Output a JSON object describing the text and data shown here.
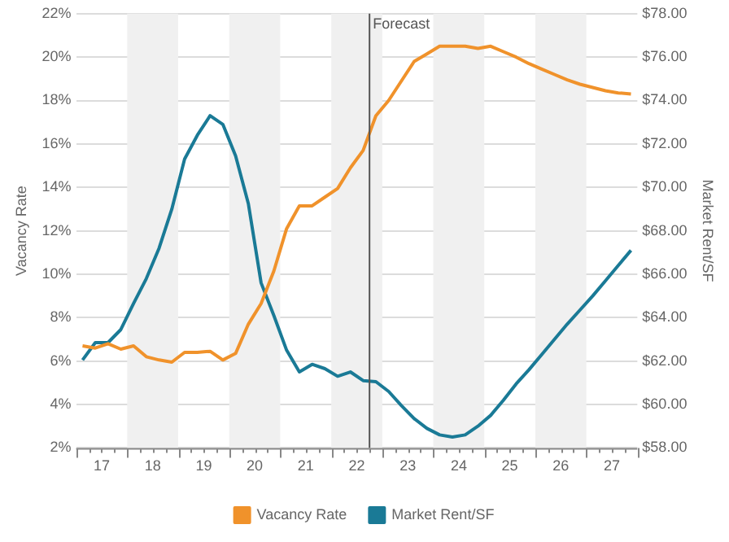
{
  "chart_data": {
    "type": "line",
    "ylabel": "Vacancy Rate",
    "y2label": "Market Rent/SF",
    "x": [
      16.625,
      16.875,
      17.125,
      17.375,
      17.625,
      17.875,
      18.125,
      18.375,
      18.625,
      18.875,
      19.125,
      19.375,
      19.625,
      19.875,
      20.125,
      20.375,
      20.625,
      20.875,
      21.125,
      21.375,
      21.625,
      21.875,
      22.125,
      22.375,
      22.625,
      22.875,
      23.125,
      23.375,
      23.625,
      23.875,
      24.125,
      24.375,
      24.625,
      24.875,
      25.125,
      25.375,
      25.625,
      25.875,
      26.125,
      26.375,
      26.625,
      26.875,
      27.125,
      27.375
    ],
    "series": [
      {
        "name": "Vacancy Rate",
        "color": "#f0922b",
        "values": [
          6.7,
          6.6,
          6.8,
          6.55,
          6.7,
          6.2,
          6.05,
          5.95,
          6.4,
          6.4,
          6.45,
          6.05,
          6.35,
          7.7,
          8.65,
          10.15,
          12.1,
          13.15,
          13.15,
          13.55,
          13.95,
          14.9,
          15.7,
          17.3,
          18.0,
          18.9,
          19.8,
          20.15,
          20.5,
          20.5,
          20.5,
          20.4,
          20.5,
          20.25,
          20.0,
          19.7,
          19.45,
          19.2,
          18.95,
          18.75,
          18.6,
          18.45,
          18.35,
          18.3
        ]
      },
      {
        "name": "Market Rent/SF",
        "color": "#1a7a96",
        "axis": "y2",
        "values": [
          62.05,
          62.85,
          62.85,
          63.45,
          64.65,
          65.8,
          67.2,
          69.0,
          71.3,
          72.4,
          73.3,
          72.9,
          71.45,
          69.25,
          65.6,
          64.1,
          62.5,
          61.5,
          61.85,
          61.65,
          61.3,
          61.5,
          61.1,
          61.05,
          60.6,
          59.95,
          59.35,
          58.9,
          58.6,
          58.5,
          58.6,
          59.0,
          59.5,
          60.2,
          60.95,
          61.6,
          62.3,
          63.0,
          63.7,
          64.35,
          65.0,
          65.7,
          66.4,
          67.1
        ]
      }
    ],
    "xlim": [
      16.5,
      27.5
    ],
    "xticks": [
      {
        "value": 16.5,
        "label": null
      },
      {
        "value": 16.75,
        "label": null
      },
      17,
      {
        "value": 17.25,
        "label": null
      },
      {
        "value": 17.5,
        "label": null
      },
      {
        "value": 17.75,
        "label": null
      },
      18,
      {
        "value": 18.25,
        "label": null
      },
      {
        "value": 18.5,
        "label": null
      },
      {
        "value": 18.75,
        "label": null
      },
      19,
      {
        "value": 19.25,
        "label": null
      },
      {
        "value": 19.5,
        "label": null
      },
      {
        "value": 19.75,
        "label": null
      },
      20,
      {
        "value": 20.25,
        "label": null
      },
      {
        "value": 20.5,
        "label": null
      },
      {
        "value": 20.75,
        "label": null
      },
      21,
      {
        "value": 21.25,
        "label": null
      },
      {
        "value": 21.5,
        "label": null
      },
      {
        "value": 21.75,
        "label": null
      },
      22,
      {
        "value": 22.25,
        "label": null
      },
      {
        "value": 22.5,
        "label": null
      },
      {
        "value": 22.75,
        "label": null
      },
      23,
      {
        "value": 23.25,
        "label": null
      },
      {
        "value": 23.5,
        "label": null
      },
      {
        "value": 23.75,
        "label": null
      },
      24,
      {
        "value": 24.25,
        "label": null
      },
      {
        "value": 24.5,
        "label": null
      },
      {
        "value": 24.75,
        "label": null
      },
      25,
      {
        "value": 25.25,
        "label": null
      },
      {
        "value": 25.5,
        "label": null
      },
      {
        "value": 25.75,
        "label": null
      },
      26,
      {
        "value": 26.25,
        "label": null
      },
      {
        "value": 26.5,
        "label": null
      },
      {
        "value": 26.75,
        "label": null
      },
      27,
      {
        "value": 27.25,
        "label": null
      },
      {
        "value": 27.5,
        "label": null
      }
    ],
    "ylim": [
      2,
      22
    ],
    "yticks": [
      {
        "value": 2,
        "label": "2%"
      },
      {
        "value": 4,
        "label": "4%"
      },
      {
        "value": 6,
        "label": "6%"
      },
      {
        "value": 8,
        "label": "8%"
      },
      {
        "value": 10,
        "label": "10%"
      },
      {
        "value": 12,
        "label": "12%"
      },
      {
        "value": 14,
        "label": "14%"
      },
      {
        "value": 16,
        "label": "16%"
      },
      {
        "value": 18,
        "label": "18%"
      },
      {
        "value": 20,
        "label": "20%"
      },
      {
        "value": 22,
        "label": "22%"
      }
    ],
    "y2lim": [
      58,
      78
    ],
    "y2ticks": [
      {
        "value": 58,
        "label": "$58.00"
      },
      {
        "value": 60,
        "label": "$60.00"
      },
      {
        "value": 62,
        "label": "$62.00"
      },
      {
        "value": 64,
        "label": "$64.00"
      },
      {
        "value": 66,
        "label": "$66.00"
      },
      {
        "value": 68,
        "label": "$68.00"
      },
      {
        "value": 70,
        "label": "$70.00"
      },
      {
        "value": 72,
        "label": "$72.00"
      },
      {
        "value": 74,
        "label": "$74.00"
      },
      {
        "value": 76,
        "label": "$76.00"
      },
      {
        "value": 78,
        "label": "$78.00"
      }
    ],
    "ref_lines": [
      {
        "axis": "x",
        "value": 22.25,
        "label": "Forecast",
        "color": "#555555"
      }
    ],
    "bands": [
      {
        "axis": "x",
        "from": 17.5,
        "to": 18.5,
        "color": "#f0f0f0"
      },
      {
        "axis": "x",
        "from": 19.5,
        "to": 20.5,
        "color": "#f0f0f0"
      },
      {
        "axis": "x",
        "from": 21.5,
        "to": 22.5,
        "color": "#f0f0f0"
      },
      {
        "axis": "x",
        "from": 23.5,
        "to": 24.5,
        "color": "#f0f0f0"
      },
      {
        "axis": "x",
        "from": 25.5,
        "to": 26.5,
        "color": "#f0f0f0"
      }
    ],
    "grid": "y",
    "legend": "bottom",
    "marker": "none",
    "line_style": "solid"
  }
}
